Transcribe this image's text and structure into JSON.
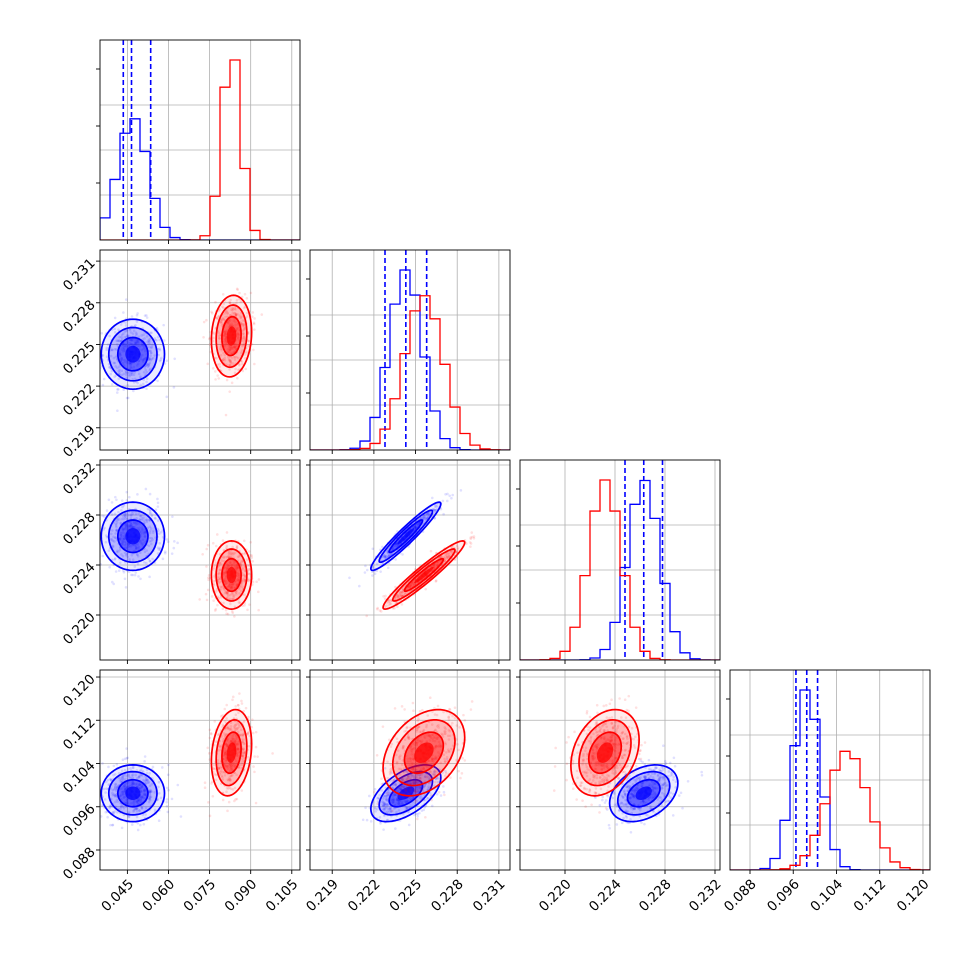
{
  "colors": {
    "blue": "#0000ff",
    "red": "#ff0000"
  },
  "chart_data": {
    "type": "corner",
    "parameters": 4,
    "grid": true,
    "legend": "none",
    "series": [
      {
        "color": "#0000ff",
        "mean": [
          0.047,
          0.2243,
          0.2263,
          0.0985
        ],
        "sd": [
          0.0055,
          0.0012,
          0.0013,
          0.0025
        ],
        "corr": [
          [
            1,
            0,
            0,
            0
          ],
          [
            0,
            1,
            0.95,
            0.55
          ],
          [
            0,
            0.95,
            1,
            0.35
          ],
          [
            0,
            0.55,
            0.35,
            1
          ]
        ],
        "quantile_lines": [
          [
            0.0435,
            0.0465,
            0.0535
          ],
          [
            0.2228,
            0.2243,
            0.2258
          ],
          [
            0.2248,
            0.2263,
            0.2278
          ],
          [
            0.0965,
            0.0985,
            0.1005
          ]
        ]
      },
      {
        "color": "#ff0000",
        "mean": [
          0.083,
          0.2256,
          0.2232,
          0.106
        ],
        "sd": [
          0.0035,
          0.0014,
          0.0013,
          0.0038
        ],
        "corr": [
          [
            1,
            0.1,
            0,
            0.2
          ],
          [
            0.1,
            1,
            0.95,
            0.35
          ],
          [
            0,
            0.95,
            1,
            0.3
          ],
          [
            0.2,
            0.35,
            0.3,
            1
          ]
        ],
        "quantile_lines": []
      }
    ],
    "axes": [
      {
        "range": [
          0.035,
          0.108
        ],
        "ticks": [
          0.045,
          0.06,
          0.075,
          0.09,
          0.105
        ],
        "tick_labels": [
          "0.045",
          "0.060",
          "0.075",
          "0.090",
          "0.105"
        ]
      },
      {
        "range": [
          0.2174,
          0.2318
        ],
        "ticks": [
          0.219,
          0.222,
          0.225,
          0.228,
          0.231
        ],
        "tick_labels": [
          "0.219",
          "0.222",
          "0.225",
          "0.228",
          "0.231"
        ]
      },
      {
        "range": [
          0.2164,
          0.2324
        ],
        "ticks": [
          0.22,
          0.224,
          0.228,
          0.232
        ],
        "tick_labels": [
          "0.220",
          "0.224",
          "0.228",
          "0.232"
        ]
      },
      {
        "range": [
          0.0843,
          0.1213
        ],
        "ticks": [
          0.088,
          0.096,
          0.104,
          0.112,
          0.12
        ],
        "tick_labels": [
          "0.088",
          "0.096",
          "0.104",
          "0.112",
          "0.120"
        ]
      }
    ]
  }
}
